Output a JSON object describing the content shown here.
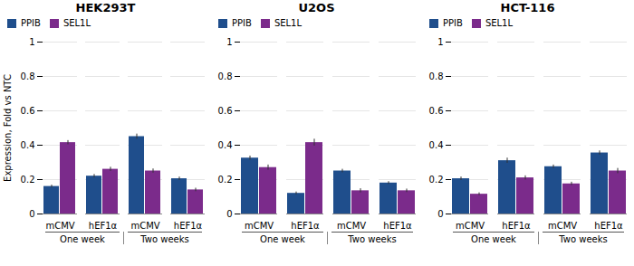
{
  "chart_data": [
    {
      "type": "bar",
      "title": "HEK293T",
      "categories": [
        "mCMV",
        "hEF1α",
        "mCMV",
        "hEF1α"
      ],
      "groups": [
        "One week",
        "Two weeks"
      ],
      "series": [
        {
          "name": "PPIB",
          "color": "#1f4e8c",
          "values": [
            0.16,
            0.22,
            0.45,
            0.205
          ],
          "errors": [
            0.008,
            0.01,
            0.015,
            0.01
          ]
        },
        {
          "name": "SEL1L",
          "color": "#7b2b8b",
          "values": [
            0.415,
            0.26,
            0.25,
            0.14
          ],
          "errors": [
            0.012,
            0.012,
            0.012,
            0.01
          ]
        }
      ],
      "ylabel": "Expression, Fold vs NTC",
      "ylim": [
        0,
        1.0
      ],
      "yticks": [
        0,
        0.2,
        0.4,
        0.6,
        0.8,
        1
      ],
      "grid": true,
      "legend": "upper left"
    },
    {
      "type": "bar",
      "title": "U2OS",
      "categories": [
        "mCMV",
        "hEF1α",
        "mCMV",
        "hEF1α"
      ],
      "groups": [
        "One week",
        "Two weeks"
      ],
      "series": [
        {
          "name": "PPIB",
          "color": "#1f4e8c",
          "values": [
            0.325,
            0.12,
            0.25,
            0.18
          ],
          "errors": [
            0.012,
            0.008,
            0.01,
            0.008
          ]
        },
        {
          "name": "SEL1L",
          "color": "#7b2b8b",
          "values": [
            0.27,
            0.415,
            0.135,
            0.135
          ],
          "errors": [
            0.015,
            0.02,
            0.012,
            0.01
          ]
        }
      ],
      "ylim": [
        0,
        1.0
      ],
      "yticks": [
        0,
        0.2,
        0.4,
        0.6,
        0.8,
        1
      ],
      "grid": true,
      "legend": "upper left"
    },
    {
      "type": "bar",
      "title": "HCT-116",
      "categories": [
        "mCMV",
        "hEF1α",
        "mCMV",
        "hEF1α"
      ],
      "groups": [
        "One week",
        "Two weeks"
      ],
      "series": [
        {
          "name": "PPIB",
          "color": "#1f4e8c",
          "values": [
            0.205,
            0.31,
            0.275,
            0.355
          ],
          "errors": [
            0.01,
            0.015,
            0.01,
            0.012
          ]
        },
        {
          "name": "SEL1L",
          "color": "#7b2b8b",
          "values": [
            0.115,
            0.21,
            0.175,
            0.25
          ],
          "errors": [
            0.008,
            0.012,
            0.01,
            0.015
          ]
        }
      ],
      "ylim": [
        0,
        1.0
      ],
      "yticks": [
        0,
        0.2,
        0.4,
        0.6,
        0.8,
        1
      ],
      "grid": true,
      "legend": "upper left"
    }
  ]
}
